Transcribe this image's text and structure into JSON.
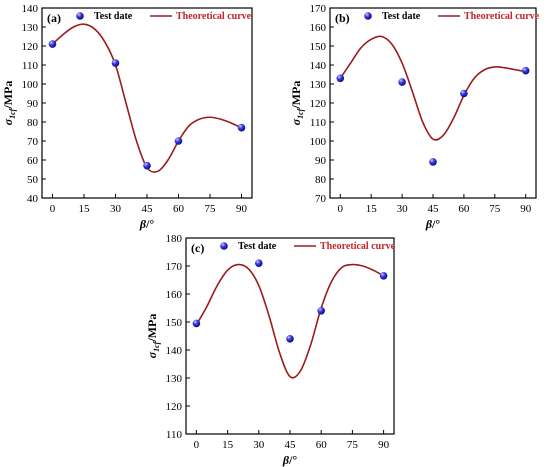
{
  "figure": {
    "style": {
      "axis_color": "#000000",
      "curve_color": "#9b1c1c",
      "point_color": "#1f1fd6",
      "point_highlight": "#aab8ff",
      "legend_text_color": "#c0262a"
    },
    "legend": {
      "test_label": "Test date",
      "curve_label": "Theoretical curve"
    }
  },
  "chart_data": [
    {
      "panel": "(a)",
      "type": "scatter",
      "xlabel": "β/°",
      "ylabel": "σ1cf/MPa",
      "ylabel_main": "σ",
      "ylabel_sub": "1cf",
      "ylabel_rest": "/MPa",
      "xlim": [
        -5,
        95
      ],
      "ylim": [
        40,
        140
      ],
      "xticks": [
        0,
        15,
        30,
        45,
        60,
        75,
        90
      ],
      "yticks": [
        40,
        50,
        60,
        70,
        80,
        90,
        100,
        110,
        120,
        130,
        140
      ],
      "legend": "top-right",
      "test_points": [
        {
          "x": 0,
          "y": 121
        },
        {
          "x": 30,
          "y": 111
        },
        {
          "x": 45,
          "y": 57
        },
        {
          "x": 60,
          "y": 70
        },
        {
          "x": 90,
          "y": 77
        }
      ],
      "theoretical_curve": {
        "x": [
          0,
          5,
          10,
          15,
          20,
          25,
          30,
          35,
          40,
          45,
          50,
          55,
          60,
          65,
          70,
          75,
          80,
          85,
          90
        ],
        "y": [
          121,
          126,
          130,
          131.5,
          129,
          122,
          110,
          90,
          70,
          56,
          54,
          60,
          70,
          78,
          81.5,
          82.5,
          81.5,
          79.5,
          77
        ]
      }
    },
    {
      "panel": "(b)",
      "type": "scatter",
      "xlabel": "β/°",
      "ylabel": "σ1cf/MPa",
      "ylabel_main": "σ",
      "ylabel_sub": "1cf",
      "ylabel_rest": "/MPa",
      "xlim": [
        -5,
        95
      ],
      "ylim": [
        70,
        170
      ],
      "xticks": [
        0,
        15,
        30,
        45,
        60,
        75,
        90
      ],
      "yticks": [
        70,
        80,
        90,
        100,
        110,
        120,
        130,
        140,
        150,
        160,
        170
      ],
      "legend": "top-right",
      "test_points": [
        {
          "x": 0,
          "y": 133
        },
        {
          "x": 30,
          "y": 131
        },
        {
          "x": 45,
          "y": 89
        },
        {
          "x": 60,
          "y": 125
        },
        {
          "x": 90,
          "y": 137
        }
      ],
      "theoretical_curve": {
        "x": [
          0,
          5,
          10,
          15,
          20,
          25,
          30,
          35,
          40,
          45,
          50,
          55,
          60,
          65,
          70,
          75,
          80,
          85,
          90
        ],
        "y": [
          133,
          141,
          149,
          153.5,
          155,
          151,
          141,
          126,
          110,
          101,
          103,
          112,
          124,
          133,
          137.5,
          139,
          138.5,
          137.5,
          136.5
        ]
      }
    },
    {
      "panel": "(c)",
      "type": "scatter",
      "xlabel": "β/°",
      "ylabel": "σ1cf/MPa",
      "ylabel_main": "σ",
      "ylabel_sub": "1cf",
      "ylabel_rest": "/MPa",
      "xlim": [
        -5,
        95
      ],
      "ylim": [
        110,
        180
      ],
      "xticks": [
        0,
        15,
        30,
        45,
        60,
        75,
        90
      ],
      "yticks": [
        110,
        120,
        130,
        140,
        150,
        160,
        170,
        180
      ],
      "legend": "top-right",
      "test_points": [
        {
          "x": 0,
          "y": 149.5
        },
        {
          "x": 30,
          "y": 171
        },
        {
          "x": 45,
          "y": 144
        },
        {
          "x": 60,
          "y": 154
        },
        {
          "x": 90,
          "y": 166.5
        }
      ],
      "theoretical_curve": {
        "x": [
          0,
          5,
          10,
          15,
          20,
          25,
          30,
          35,
          40,
          45,
          50,
          55,
          60,
          65,
          70,
          75,
          80,
          85,
          90
        ],
        "y": [
          149,
          155.5,
          163,
          168.5,
          170.5,
          169,
          163,
          152,
          139,
          130.5,
          132.5,
          142,
          155,
          164.5,
          169.5,
          170.5,
          170,
          168.5,
          166.5
        ]
      }
    }
  ]
}
